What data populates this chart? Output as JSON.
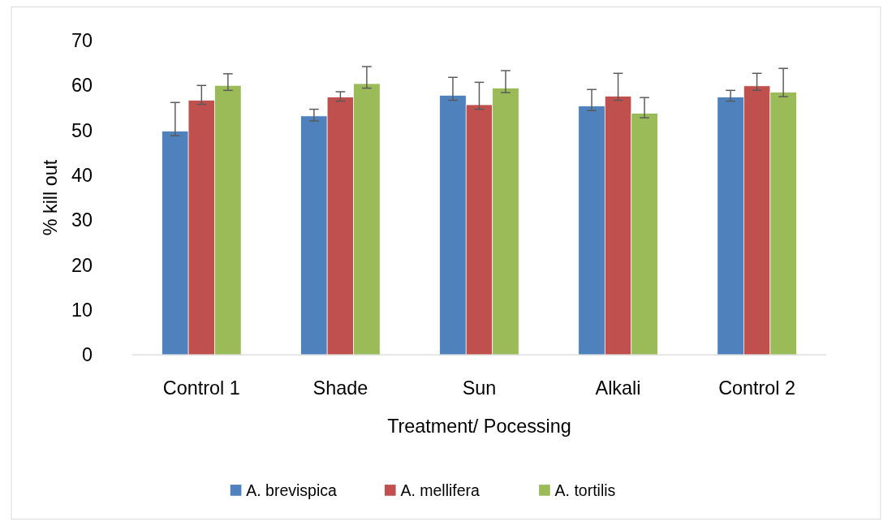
{
  "chart_data": {
    "type": "bar",
    "xlabel": "Treatment/ Pocessing",
    "ylabel": "% kill out",
    "categories": [
      "Control 1",
      "Shade",
      "Sun",
      "Alkali",
      "Control 2"
    ],
    "series": [
      {
        "name": "A. brevispica",
        "color": "#4f81bd",
        "values": [
          49.8,
          53.2,
          57.8,
          55.4,
          57.4
        ],
        "errors": [
          [
            48.8,
            56.2
          ],
          [
            52.1,
            54.7
          ],
          [
            56.7,
            61.8
          ],
          [
            54.4,
            59.1
          ],
          [
            56.5,
            58.9
          ]
        ]
      },
      {
        "name": "A. mellifera",
        "color": "#c0504d",
        "values": [
          56.7,
          57.4,
          55.7,
          57.6,
          59.9
        ],
        "errors": [
          [
            55.8,
            60.0
          ],
          [
            56.5,
            58.6
          ],
          [
            54.7,
            60.7
          ],
          [
            56.7,
            62.7
          ],
          [
            58.9,
            62.7
          ]
        ]
      },
      {
        "name": "A. tortilis",
        "color": "#9bbb59",
        "values": [
          60.0,
          60.4,
          59.4,
          53.8,
          58.5
        ],
        "errors": [
          [
            58.9,
            62.6
          ],
          [
            59.4,
            64.2
          ],
          [
            58.4,
            63.3
          ],
          [
            52.8,
            57.3
          ],
          [
            57.5,
            63.8
          ]
        ]
      }
    ],
    "ylim": [
      0,
      70
    ],
    "yticks": [
      0,
      10,
      20,
      30,
      40,
      50,
      60,
      70
    ],
    "grid": false,
    "legend": "bottom"
  }
}
